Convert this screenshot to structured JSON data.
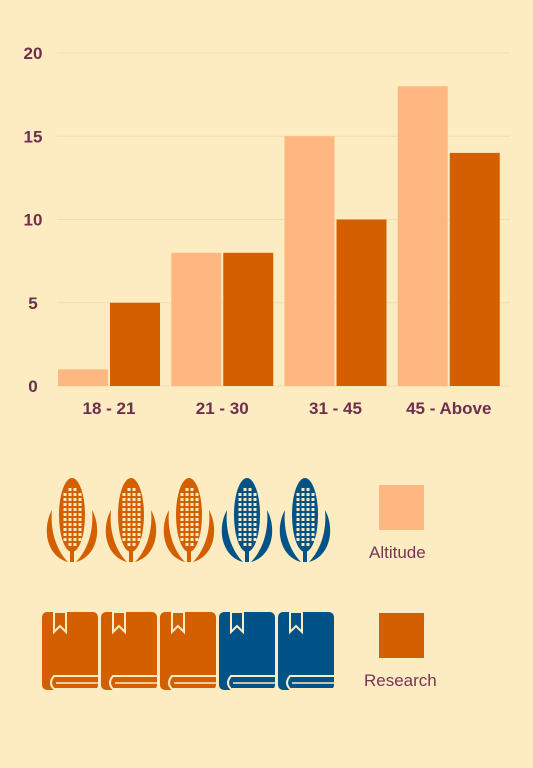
{
  "colors": {
    "background": "#FDEBC1",
    "altitude": "#FFB782",
    "research": "#D45F00",
    "icon_blue": "#005287",
    "grid": "#EEDDB4",
    "text": "#6E2F4E"
  },
  "chart_data": {
    "type": "bar",
    "categories": [
      "18 - 21",
      "21 - 30",
      "31 - 45",
      "45 - Above"
    ],
    "series": [
      {
        "name": "Altitude",
        "values": [
          1,
          8,
          15,
          18
        ]
      },
      {
        "name": "Research",
        "values": [
          5,
          8,
          10,
          14
        ]
      }
    ],
    "y_ticks": [
      "0",
      "5",
      "10",
      "15",
      "20"
    ],
    "ylim": [
      0,
      20
    ],
    "grid": true
  },
  "pictograph": {
    "corn": {
      "icon": "corn-icon",
      "total": 5,
      "highlighted": 3
    },
    "books": {
      "icon": "book-icon",
      "total": 5,
      "highlighted": 3
    }
  },
  "legend": {
    "altitude_label": "Altitude",
    "research_label": "Research"
  }
}
